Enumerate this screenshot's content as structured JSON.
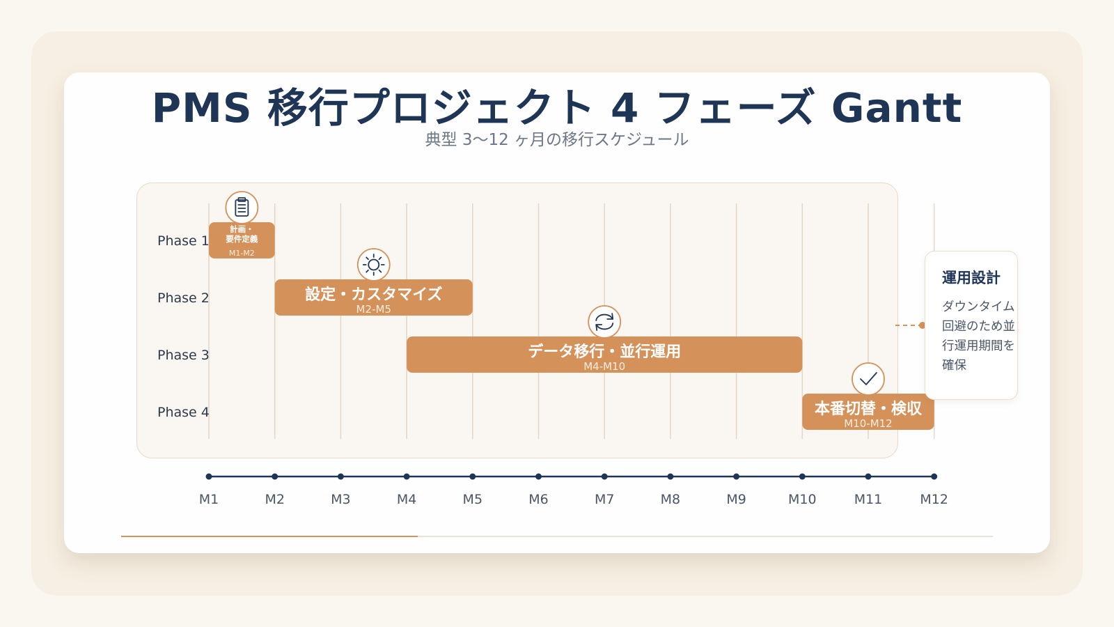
{
  "title": "PMS 移行プロジェクト 4 フェーズ Gantt",
  "subtitle": "典型 3〜12 ヶ月の移行スケジュール",
  "colors": {
    "navy": "#1e3556",
    "bar": "#d4915a",
    "grid": "#e2d6c6",
    "icon_bg": "#ffffff",
    "icon_border": "#d4915a"
  },
  "chart_data": {
    "type": "gantt",
    "months": [
      "M1",
      "M2",
      "M3",
      "M4",
      "M5",
      "M6",
      "M7",
      "M8",
      "M9",
      "M10",
      "M11",
      "M12"
    ],
    "phases": [
      "Phase 1",
      "Phase 2",
      "Phase 3",
      "Phase 4"
    ],
    "tasks": [
      {
        "phase": "Phase 1",
        "label_lines": [
          "計画・",
          "要件定義"
        ],
        "range_label": "M1-M2",
        "start": 1,
        "end": 2,
        "icon": "clipboard-icon"
      },
      {
        "phase": "Phase 2",
        "label_lines": [
          "設定・カスタマイズ"
        ],
        "range_label": "M2-M5",
        "start": 2,
        "end": 5,
        "icon": "gear-icon"
      },
      {
        "phase": "Phase 3",
        "label_lines": [
          "データ移行・並行運用"
        ],
        "range_label": "M4-M10",
        "start": 4,
        "end": 10,
        "icon": "sync-icon"
      },
      {
        "phase": "Phase 4",
        "label_lines": [
          "本番切替・検収"
        ],
        "range_label": "M10-M12",
        "start": 10,
        "end": 12,
        "icon": "check-icon"
      }
    ]
  },
  "note": {
    "title": "運用設計",
    "body": "ダウンタイム回避のため並行運用期間を確保"
  },
  "progress": {
    "fraction": 0.34
  }
}
